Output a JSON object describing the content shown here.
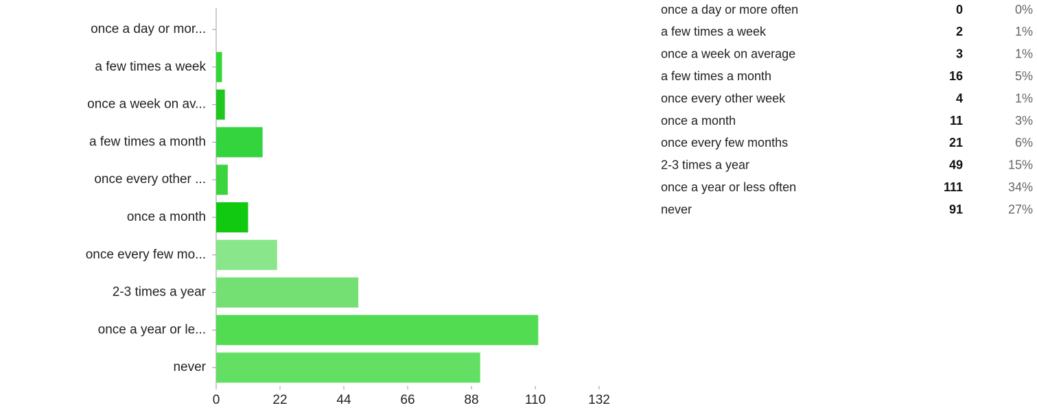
{
  "chart_data": {
    "type": "bar",
    "orientation": "horizontal",
    "categories": [
      "once a day or mor...",
      "a few times a week",
      "once a week on av...",
      "a few times a month",
      "once every other ...",
      "once a month",
      "once every few mo...",
      "2-3 times a year",
      "once a year or le...",
      "never"
    ],
    "values": [
      0,
      2,
      3,
      16,
      4,
      11,
      21,
      49,
      111,
      91
    ],
    "colors": [
      "#2ecc40",
      "#33d633",
      "#1fc71f",
      "#33d43d",
      "#3cd43c",
      "#12c912",
      "#8ae68a",
      "#74e074",
      "#52dc52",
      "#63e063"
    ],
    "xlim": [
      0,
      132
    ],
    "xticks": [
      0,
      22,
      44,
      66,
      88,
      110,
      132
    ]
  },
  "table": {
    "rows": [
      {
        "label": "once a day or more often",
        "count": 0,
        "percent": "0%"
      },
      {
        "label": "a few times a week",
        "count": 2,
        "percent": "1%"
      },
      {
        "label": "once a week on average",
        "count": 3,
        "percent": "1%"
      },
      {
        "label": "a few times a month",
        "count": 16,
        "percent": "5%"
      },
      {
        "label": "once every other week",
        "count": 4,
        "percent": "1%"
      },
      {
        "label": "once a month",
        "count": 11,
        "percent": "3%"
      },
      {
        "label": "once every few months",
        "count": 21,
        "percent": "6%"
      },
      {
        "label": "2-3 times a year",
        "count": 49,
        "percent": "15%"
      },
      {
        "label": "once a year or less often",
        "count": 111,
        "percent": "34%"
      },
      {
        "label": "never",
        "count": 91,
        "percent": "27%"
      }
    ]
  }
}
